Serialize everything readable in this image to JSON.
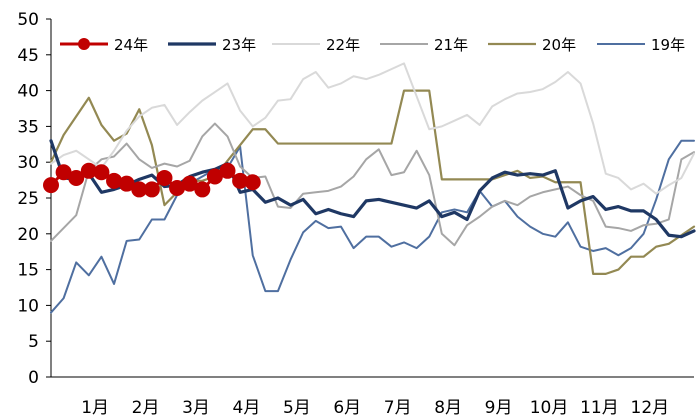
{
  "chart_data": {
    "type": "line",
    "title": "",
    "xlabel": "",
    "ylabel": "",
    "ylim": [
      0,
      50
    ],
    "yticks": [
      "0",
      "5",
      "10",
      "15",
      "20",
      "25",
      "30",
      "35",
      "40",
      "45",
      "50"
    ],
    "xlim": [
      0,
      51
    ],
    "x_tick_labels": [
      "1月",
      "2月",
      "3月",
      "4月",
      "5月",
      "6月",
      "7月",
      "8月",
      "9月",
      "10月",
      "11月",
      "12月"
    ],
    "x_tick_positions": [
      3.5,
      7.5,
      11.5,
      15.5,
      19.5,
      23.5,
      27.5,
      31.5,
      35.5,
      39.5,
      43.5,
      47.5
    ],
    "grid": false,
    "legend_position": "top",
    "series": [
      {
        "name": "24年",
        "color": "#C00000",
        "marker": "circle",
        "width": 3,
        "values": [
          26.8,
          28.6,
          27.8,
          28.8,
          28.6,
          27.4,
          27.0,
          26.2,
          26.2,
          27.8,
          26.4,
          27.0,
          26.2,
          28.0,
          28.8,
          27.4,
          27.2
        ]
      },
      {
        "name": "23年",
        "color": "#1F3864",
        "width": 3.2,
        "values": [
          33.0,
          27.8,
          27.6,
          28.4,
          25.8,
          26.2,
          26.8,
          27.6,
          28.2,
          26.6,
          26.8,
          28.0,
          28.6,
          29.0,
          29.8,
          25.8,
          26.2,
          24.4,
          25.0,
          24.0,
          24.8,
          22.8,
          23.4,
          22.8,
          22.4,
          24.6,
          24.8,
          24.4,
          24.0,
          23.6,
          24.6,
          22.4,
          23.0,
          22.0,
          26.0,
          27.8,
          28.6,
          28.2,
          28.4,
          28.2,
          28.8,
          23.6,
          24.6,
          25.2,
          23.4,
          23.8,
          23.2,
          23.2,
          22.0,
          19.8,
          19.6,
          20.4
        ]
      },
      {
        "name": "22年",
        "color": "#D9D9D9",
        "width": 2,
        "values": [
          29.8,
          31.0,
          31.6,
          30.4,
          29.2,
          31.6,
          34.4,
          36.4,
          37.6,
          38.0,
          35.2,
          37.0,
          38.6,
          39.8,
          41.0,
          37.2,
          35.0,
          36.2,
          38.6,
          38.8,
          41.6,
          42.6,
          40.4,
          41.0,
          42.0,
          41.6,
          42.2,
          43.0,
          43.8,
          39.2,
          34.6,
          35.0,
          35.8,
          36.6,
          35.2,
          37.8,
          38.8,
          39.6,
          39.8,
          40.2,
          41.2,
          42.6,
          41.0,
          35.4,
          28.4,
          27.8,
          26.2,
          27.0,
          25.6,
          26.8,
          27.8,
          31.2
        ]
      },
      {
        "name": "21年",
        "color": "#A6A6A6",
        "width": 2,
        "values": [
          19.0,
          20.8,
          22.6,
          28.8,
          30.4,
          30.8,
          32.6,
          30.4,
          29.2,
          29.8,
          29.4,
          30.2,
          33.6,
          35.4,
          33.6,
          29.4,
          27.8,
          28.0,
          23.8,
          23.6,
          25.6,
          25.8,
          26.0,
          26.6,
          28.0,
          30.4,
          31.8,
          28.2,
          28.6,
          31.6,
          28.2,
          20.0,
          18.4,
          21.2,
          22.4,
          23.8,
          24.6,
          24.0,
          25.2,
          25.8,
          26.2,
          26.6,
          25.4,
          24.6,
          21.0,
          20.8,
          20.4,
          21.2,
          21.4,
          22.0,
          30.4,
          31.4
        ]
      },
      {
        "name": "20年",
        "color": "#938953",
        "width": 2.2,
        "values": [
          30.0,
          33.8,
          36.4,
          39.0,
          35.2,
          33.0,
          34.0,
          37.4,
          32.4,
          24.0,
          25.8,
          27.4,
          27.4,
          28.0,
          30.2,
          32.4,
          34.6,
          34.6,
          32.6,
          32.6,
          32.6,
          32.6,
          32.6,
          32.6,
          32.6,
          32.6,
          32.6,
          32.6,
          40.0,
          40.0,
          40.0,
          27.6,
          27.6,
          27.6,
          27.6,
          27.6,
          28.2,
          28.8,
          27.8,
          28.0,
          27.2,
          27.2,
          27.2,
          14.4,
          14.4,
          15.0,
          16.8,
          16.8,
          18.2,
          18.6,
          19.8,
          21.0
        ]
      },
      {
        "name": "19年",
        "color": "#4F6FA0",
        "width": 2,
        "values": [
          9.0,
          11.0,
          16.0,
          14.2,
          16.8,
          13.0,
          19.0,
          19.2,
          22.0,
          22.0,
          25.4,
          27.0,
          28.0,
          29.0,
          29.2,
          32.2,
          17.0,
          12.0,
          12.0,
          16.4,
          20.2,
          21.8,
          20.8,
          21.0,
          18.0,
          19.6,
          19.6,
          18.2,
          18.8,
          18.0,
          19.6,
          23.0,
          23.4,
          23.0,
          26.0,
          23.8,
          24.6,
          22.4,
          21.0,
          20.0,
          19.6,
          21.6,
          18.2,
          17.6,
          18.0,
          17.0,
          18.0,
          20.0,
          24.8,
          30.4,
          33.0,
          33.0
        ]
      }
    ]
  }
}
